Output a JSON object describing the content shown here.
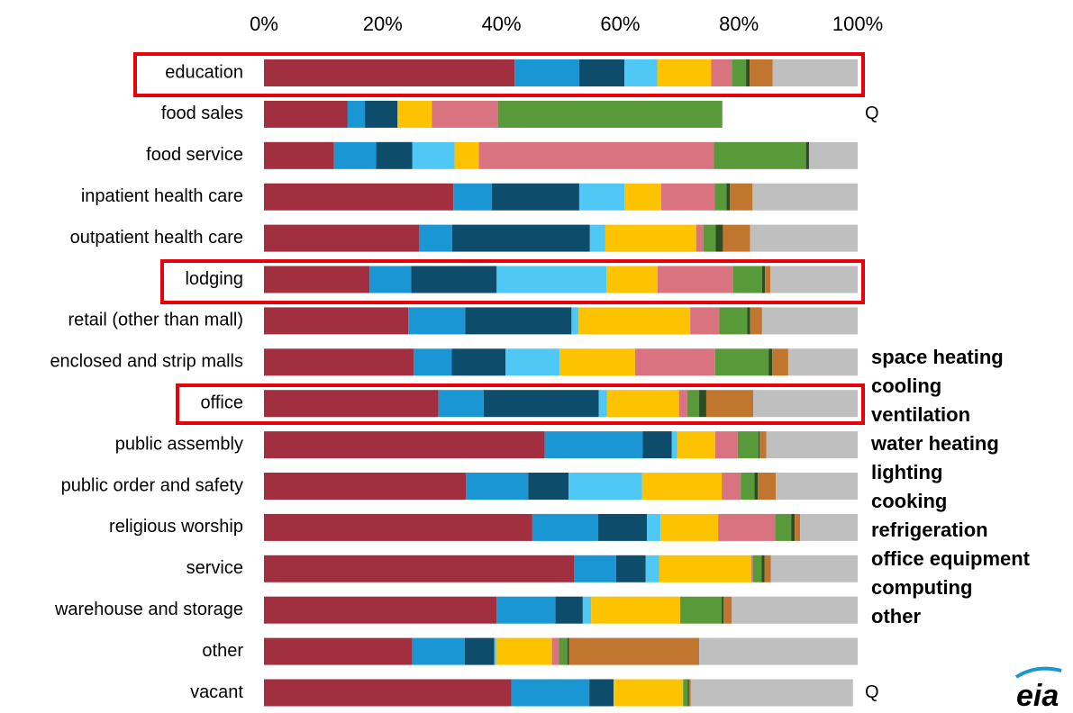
{
  "chart_data": {
    "type": "stacked_bar_horizontal",
    "categories": [
      "education",
      "food sales",
      "food service",
      "inpatient health care",
      "outpatient health care",
      "lodging",
      "retail (other than mall)",
      "enclosed and strip malls",
      "office",
      "public assembly",
      "public order and safety",
      "religious worship",
      "service",
      "warehouse and storage",
      "other",
      "vacant"
    ],
    "xlim": [
      0,
      100
    ],
    "xticks": [
      {
        "value": 0,
        "label": "0%"
      },
      {
        "value": 20,
        "label": "20%"
      },
      {
        "value": 40,
        "label": "40%"
      },
      {
        "value": 60,
        "label": "60%"
      },
      {
        "value": 80,
        "label": "80%"
      },
      {
        "value": 100,
        "label": "100%"
      }
    ],
    "series": [
      {
        "name": "space heating",
        "color": "#a12f3f",
        "values": [
          42.2,
          14.1,
          11.8,
          31.9,
          26.1,
          17.8,
          24.3,
          25.2,
          29.4,
          47.3,
          34.0,
          45.2,
          52.2,
          39.2,
          25.0,
          41.7
        ]
      },
      {
        "name": "cooling",
        "color": "#1a96d4",
        "values": [
          10.9,
          2.9,
          7.1,
          6.5,
          5.6,
          7.0,
          9.6,
          6.4,
          7.6,
          16.5,
          10.5,
          11.1,
          7.1,
          9.9,
          8.8,
          13.1
        ]
      },
      {
        "name": "ventilation",
        "color": "#0e4c6b",
        "values": [
          7.6,
          5.5,
          6.1,
          14.7,
          23.2,
          14.4,
          17.9,
          9.1,
          19.4,
          4.9,
          6.8,
          8.2,
          5.0,
          4.6,
          5.0,
          4.1
        ]
      },
      {
        "name": "water heating",
        "color": "#4fc8f5",
        "values": [
          5.6,
          0,
          7.1,
          7.6,
          2.6,
          18.5,
          1.2,
          9.1,
          1.4,
          0.9,
          12.4,
          2.3,
          2.3,
          1.4,
          0.3,
          0
        ]
      },
      {
        "name": "lighting",
        "color": "#fdc300",
        "values": [
          9.0,
          5.8,
          4.1,
          6.2,
          15.3,
          8.6,
          18.8,
          12.7,
          12.1,
          6.4,
          13.4,
          9.7,
          15.5,
          15.0,
          9.4,
          11.7
        ]
      },
      {
        "name": "cooking",
        "color": "#d9737f",
        "values": [
          3.5,
          11.1,
          39.6,
          9.0,
          1.2,
          12.7,
          4.9,
          13.5,
          1.4,
          3.8,
          3.2,
          9.6,
          0.3,
          0,
          1.2,
          0
        ]
      },
      {
        "name": "refrigeration",
        "color": "#58993a",
        "values": [
          2.4,
          37.8,
          15.5,
          2.0,
          2.1,
          4.9,
          4.7,
          9.0,
          2.0,
          3.5,
          2.3,
          2.7,
          1.4,
          7.0,
          1.4,
          0.8
        ]
      },
      {
        "name": "office equipment",
        "color": "#2a4d22",
        "values": [
          0.6,
          0,
          0.5,
          0.6,
          1.2,
          0.5,
          0.5,
          0.6,
          1.2,
          0.2,
          0.6,
          0.6,
          0.5,
          0.3,
          0.3,
          0.2
        ]
      },
      {
        "name": "computing",
        "color": "#c0762f",
        "values": [
          3.9,
          0,
          0,
          3.8,
          4.6,
          0.9,
          2.0,
          2.7,
          7.9,
          1.1,
          3.0,
          0.9,
          1.1,
          1.4,
          21.9,
          0.3
        ]
      },
      {
        "name": "other",
        "color": "#bfbfbf",
        "values": [
          14.3,
          0,
          8.2,
          17.7,
          18.1,
          14.7,
          16.1,
          11.7,
          17.6,
          15.4,
          13.8,
          9.7,
          14.6,
          21.2,
          26.7,
          27.3
        ]
      }
    ],
    "annotations": [
      {
        "text": "Q",
        "category": "food sales"
      },
      {
        "text": "Q",
        "category": "vacant"
      }
    ],
    "logo": "eia"
  }
}
